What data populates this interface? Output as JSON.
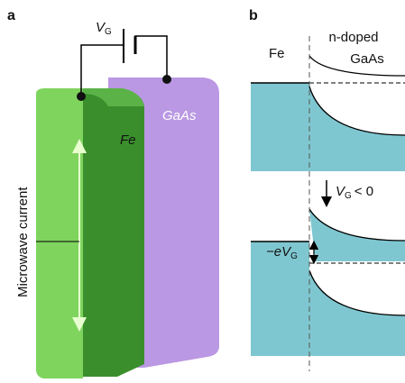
{
  "panel_a": {
    "label": "a",
    "gate_voltage": {
      "symbol": "V",
      "subscript": "G"
    },
    "fe_label": "Fe",
    "gaas_label": "GaAs",
    "current_label": "Microwave current"
  },
  "panel_b": {
    "label": "b",
    "fe_label": "Fe",
    "semiconductor_label": [
      "n-doped",
      "GaAs"
    ],
    "bias_condition": {
      "symbol": "V",
      "subscript": "G",
      "relation": "< 0"
    },
    "shift_label": {
      "prefix": "−eV",
      "subscript": "G"
    }
  }
}
